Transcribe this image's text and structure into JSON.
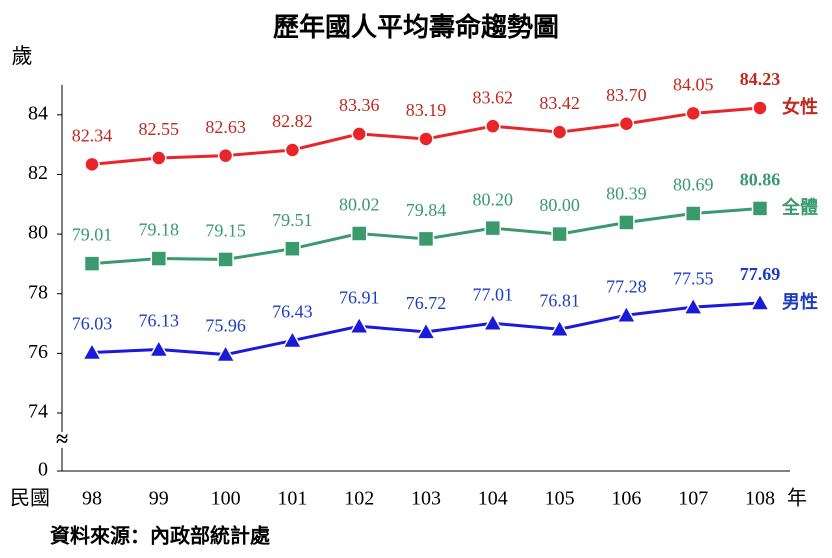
{
  "chart_data": {
    "type": "line",
    "title": "歷年國人平均壽命趨勢圖",
    "y_label": "歲",
    "x_prefix": "民國",
    "x_suffix": "年",
    "source": "資料來源：內政部統計處",
    "categories": [
      "98",
      "99",
      "100",
      "101",
      "102",
      "103",
      "104",
      "105",
      "106",
      "107",
      "108"
    ],
    "ylim": [
      0,
      85
    ],
    "y_break": [
      0,
      74
    ],
    "yticks": [
      0,
      74,
      76,
      78,
      80,
      82,
      84
    ],
    "series": [
      {
        "name": "女性",
        "color": "#e8262a",
        "label_color": "#c0281e",
        "marker": "circle",
        "values": [
          82.34,
          82.55,
          82.63,
          82.82,
          83.36,
          83.19,
          83.62,
          83.42,
          83.7,
          84.05,
          84.23
        ],
        "value_labels": [
          "82.34",
          "82.55",
          "82.63",
          "82.82",
          "83.36",
          "83.19",
          "83.62",
          "83.42",
          "83.70",
          "84.05",
          "84.23"
        ]
      },
      {
        "name": "全體",
        "color": "#3a9a6e",
        "label_color": "#3a9a6e",
        "marker": "square",
        "values": [
          79.01,
          79.18,
          79.15,
          79.51,
          80.02,
          79.84,
          80.2,
          80.0,
          80.39,
          80.69,
          80.86
        ],
        "value_labels": [
          "79.01",
          "79.18",
          "79.15",
          "79.51",
          "80.02",
          "79.84",
          "80.20",
          "80.00",
          "80.39",
          "80.69",
          "80.86"
        ]
      },
      {
        "name": "男性",
        "color": "#1a1adb",
        "label_color": "#1c3cc0",
        "marker": "triangle",
        "values": [
          76.03,
          76.13,
          75.96,
          76.43,
          76.91,
          76.72,
          77.01,
          76.81,
          77.28,
          77.55,
          77.69
        ],
        "value_labels": [
          "76.03",
          "76.13",
          "75.96",
          "76.43",
          "76.91",
          "76.72",
          "77.01",
          "76.81",
          "77.28",
          "77.55",
          "77.69"
        ]
      }
    ]
  }
}
